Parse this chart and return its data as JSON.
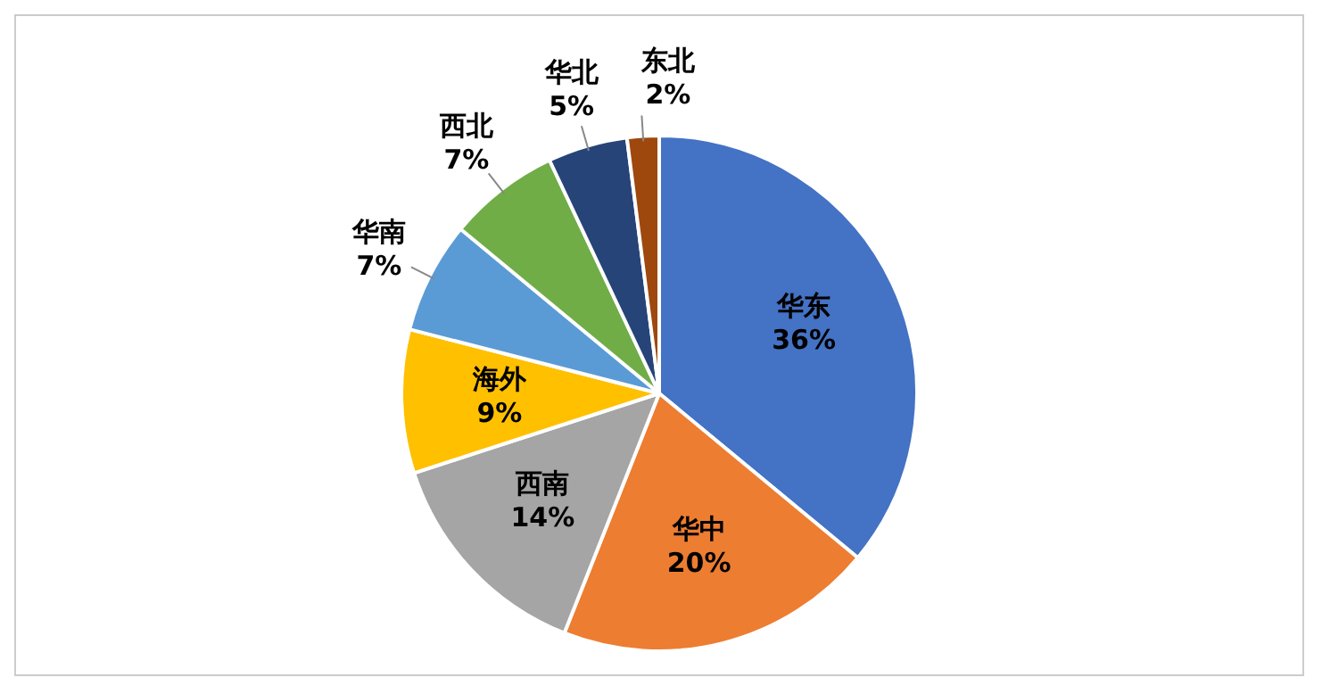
{
  "chart_data": {
    "type": "pie",
    "categories": [
      "华东",
      "华中",
      "西南",
      "海外",
      "华南",
      "西北",
      "华北",
      "东北"
    ],
    "values": [
      36,
      20,
      14,
      9,
      7,
      7,
      5,
      2
    ],
    "value_labels": [
      "36%",
      "20%",
      "14%",
      "9%",
      "7%",
      "7%",
      "5%",
      "2%"
    ],
    "colors": [
      "#4472c4",
      "#ed7d31",
      "#a5a5a5",
      "#ffc000",
      "#5b9bd5",
      "#70ad47",
      "#264478",
      "#9e480e"
    ],
    "legend": false
  }
}
